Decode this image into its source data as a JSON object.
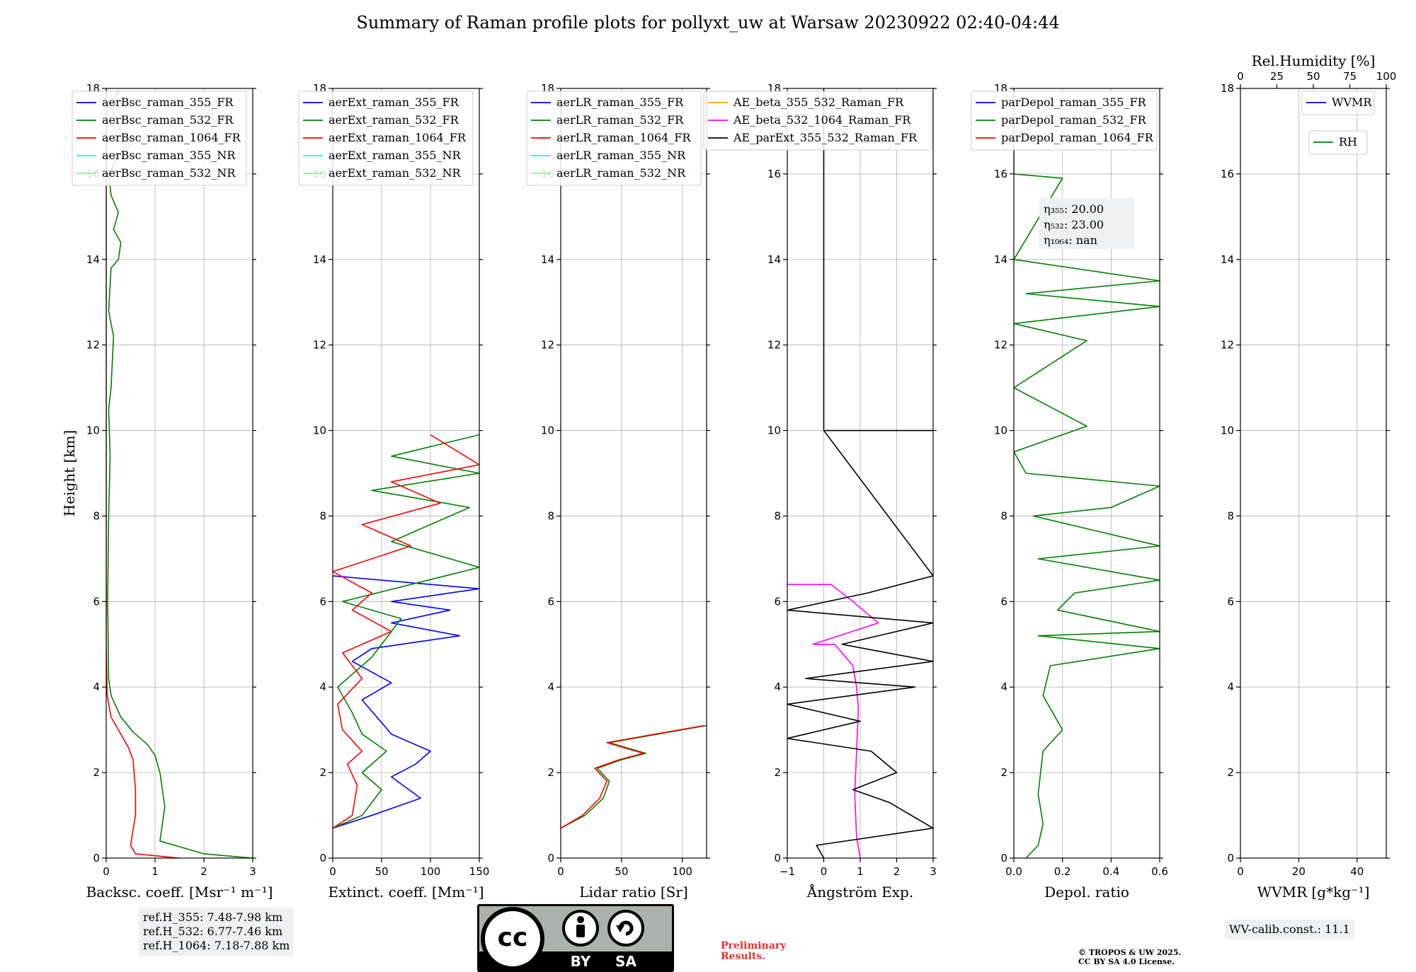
{
  "title": "Summary of Raman profile plots for pollyxt_uw at Warsaw 20230922 02:40-04:44",
  "footer": {
    "ref_heights": [
      "ref.H_355: 7.48-7.98 km",
      "ref.H_532: 6.77-7.46 km",
      "ref.H_1064: 7.18-7.88 km"
    ],
    "preliminary": [
      "Preliminary",
      "Results."
    ],
    "copyright": [
      "© TROPOS & UW 2025.",
      "CC BY SA 4.0 License."
    ],
    "wv_calib": "WV-calib.const.: 11.1",
    "license_badge": {
      "left": "cc",
      "by": "BY",
      "sa": "SA"
    }
  },
  "colors": {
    "blue": "#0000ff",
    "green": "#008000",
    "red": "#ff0000",
    "cyan": "#00ffff",
    "lightgreen": "#90ee90",
    "orange": "#ffa500",
    "magenta": "#ff00ff",
    "black": "#000000"
  },
  "chart_data": [
    {
      "id": "bsc",
      "type": "line",
      "xlabel": "Backsc. coeff. [Msr⁻¹ m⁻¹]",
      "ylabel": "Height [km]",
      "xlim": [
        0,
        3
      ],
      "ylim": [
        0,
        18
      ],
      "xticks": [
        0,
        1,
        2,
        3
      ],
      "yticks": [
        0,
        2,
        4,
        6,
        8,
        10,
        12,
        14,
        16,
        18
      ],
      "legend": [
        "aerBsc_raman_355_FR",
        "aerBsc_raman_532_FR",
        "aerBsc_raman_1064_FR",
        "aerBsc_raman_355_NR",
        "aerBsc_raman_532_NR"
      ],
      "legend_colors": [
        "blue",
        "green",
        "red",
        "cyan",
        "lightgreen"
      ],
      "series": [
        {
          "name": "aerBsc_raman_532_FR",
          "color": "green",
          "points": [
            [
              3.0,
              0.0
            ],
            [
              2.0,
              0.1
            ],
            [
              1.1,
              0.4
            ],
            [
              1.15,
              0.8
            ],
            [
              1.2,
              1.2
            ],
            [
              1.1,
              2.0
            ],
            [
              1.0,
              2.4
            ],
            [
              0.85,
              2.65
            ],
            [
              0.55,
              2.95
            ],
            [
              0.3,
              3.3
            ],
            [
              0.1,
              3.8
            ],
            [
              0.05,
              4.2
            ],
            [
              0.03,
              6.0
            ],
            [
              0.05,
              8.0
            ],
            [
              0.08,
              9.4
            ],
            [
              0.05,
              10.5
            ],
            [
              0.1,
              11.0
            ],
            [
              0.15,
              12.2
            ],
            [
              0.05,
              12.8
            ],
            [
              0.1,
              13.8
            ],
            [
              0.25,
              14.0
            ],
            [
              0.3,
              14.4
            ],
            [
              0.15,
              14.7
            ],
            [
              0.25,
              15.1
            ],
            [
              0.1,
              15.5
            ],
            [
              0.05,
              16.0
            ],
            [
              0.35,
              16.6
            ],
            [
              0.55,
              16.7
            ],
            [
              0.3,
              17.0
            ],
            [
              0.1,
              17.6
            ],
            [
              0.25,
              17.95
            ]
          ]
        },
        {
          "name": "aerBsc_raman_1064_FR",
          "color": "red",
          "points": [
            [
              1.5,
              0.0
            ],
            [
              0.6,
              0.1
            ],
            [
              0.5,
              0.3
            ],
            [
              0.6,
              1.0
            ],
            [
              0.6,
              1.6
            ],
            [
              0.55,
              2.3
            ],
            [
              0.45,
              2.6
            ],
            [
              0.3,
              2.9
            ],
            [
              0.1,
              3.3
            ],
            [
              0.02,
              3.8
            ],
            [
              0.0,
              5.0
            ],
            [
              0.0,
              18.0
            ]
          ]
        }
      ]
    },
    {
      "id": "ext",
      "type": "line",
      "xlabel": "Extinct. coeff. [Mm⁻¹]",
      "ylabel": "",
      "xlim": [
        0,
        150
      ],
      "ylim": [
        0,
        18
      ],
      "xticks": [
        0,
        50,
        100,
        150
      ],
      "yticks": [
        0,
        2,
        4,
        6,
        8,
        10,
        12,
        14,
        16,
        18
      ],
      "legend": [
        "aerExt_raman_355_FR",
        "aerExt_raman_532_FR",
        "aerExt_raman_1064_FR",
        "aerExt_raman_355_NR",
        "aerExt_raman_532_NR"
      ],
      "legend_colors": [
        "blue",
        "green",
        "red",
        "cyan",
        "lightgreen"
      ],
      "series": [
        {
          "name": "aerExt_raman_355_FR",
          "color": "blue",
          "points": [
            [
              0,
              0.7
            ],
            [
              40,
              1.0
            ],
            [
              90,
              1.4
            ],
            [
              60,
              1.9
            ],
            [
              85,
              2.2
            ],
            [
              100,
              2.5
            ],
            [
              60,
              2.9
            ],
            [
              45,
              3.3
            ],
            [
              30,
              3.7
            ],
            [
              60,
              4.1
            ],
            [
              20,
              4.6
            ],
            [
              40,
              4.9
            ],
            [
              130,
              5.2
            ],
            [
              60,
              5.5
            ],
            [
              120,
              5.8
            ],
            [
              60,
              6.0
            ],
            [
              150,
              6.3
            ],
            [
              0,
              6.6
            ]
          ]
        },
        {
          "name": "aerExt_raman_532_FR",
          "color": "green",
          "points": [
            [
              0,
              0.7
            ],
            [
              30,
              1.0
            ],
            [
              50,
              1.6
            ],
            [
              30,
              2.0
            ],
            [
              55,
              2.5
            ],
            [
              30,
              2.9
            ],
            [
              20,
              3.4
            ],
            [
              5,
              4.0
            ],
            [
              40,
              4.7
            ],
            [
              70,
              5.6
            ],
            [
              10,
              6.0
            ],
            [
              150,
              6.8
            ],
            [
              60,
              7.4
            ],
            [
              140,
              8.2
            ],
            [
              40,
              8.6
            ],
            [
              150,
              9.0
            ],
            [
              60,
              9.4
            ],
            [
              150,
              9.9
            ]
          ]
        },
        {
          "name": "aerExt_raman_1064_FR",
          "color": "red",
          "points": [
            [
              0,
              0.7
            ],
            [
              20,
              1.0
            ],
            [
              25,
              1.7
            ],
            [
              15,
              2.2
            ],
            [
              30,
              2.5
            ],
            [
              10,
              3.0
            ],
            [
              5,
              3.6
            ],
            [
              30,
              4.2
            ],
            [
              10,
              4.8
            ],
            [
              60,
              5.3
            ],
            [
              20,
              5.8
            ],
            [
              40,
              6.2
            ],
            [
              0,
              6.7
            ],
            [
              80,
              7.3
            ],
            [
              30,
              7.8
            ],
            [
              110,
              8.3
            ],
            [
              60,
              8.8
            ],
            [
              150,
              9.2
            ],
            [
              100,
              9.9
            ]
          ]
        }
      ]
    },
    {
      "id": "lr",
      "type": "line",
      "xlabel": "Lidar ratio [Sr]",
      "ylabel": "",
      "xlim": [
        0,
        120
      ],
      "ylim": [
        0,
        18
      ],
      "xticks": [
        0,
        50,
        100
      ],
      "yticks": [
        0,
        2,
        4,
        6,
        8,
        10,
        12,
        14,
        16,
        18
      ],
      "legend": [
        "aerLR_raman_355_FR",
        "aerLR_raman_532_FR",
        "aerLR_raman_1064_FR",
        "aerLR_raman_355_NR",
        "aerLR_raman_532_NR"
      ],
      "legend_colors": [
        "blue",
        "green",
        "red",
        "cyan",
        "lightgreen"
      ],
      "series": [
        {
          "name": "aerLR_raman_532_FR",
          "color": "green",
          "points": [
            [
              0,
              0.7
            ],
            [
              20,
              1.0
            ],
            [
              35,
              1.4
            ],
            [
              40,
              1.8
            ],
            [
              30,
              2.1
            ],
            [
              50,
              2.3
            ],
            [
              70,
              2.45
            ],
            [
              40,
              2.7
            ],
            [
              80,
              2.9
            ],
            [
              120,
              3.1
            ]
          ]
        },
        {
          "name": "aerLR_raman_1064_FR",
          "color": "red",
          "points": [
            [
              0,
              0.7
            ],
            [
              18,
              1.0
            ],
            [
              32,
              1.4
            ],
            [
              38,
              1.8
            ],
            [
              28,
              2.1
            ],
            [
              48,
              2.3
            ],
            [
              68,
              2.45
            ],
            [
              38,
              2.7
            ],
            [
              78,
              2.9
            ],
            [
              118,
              3.1
            ]
          ]
        }
      ]
    },
    {
      "id": "ae",
      "type": "line",
      "xlabel": "Ångström Exp.",
      "ylabel": "",
      "xlim": [
        -1,
        3
      ],
      "ylim": [
        0,
        18
      ],
      "xticks": [
        -1,
        0,
        1,
        2,
        3
      ],
      "yticks": [
        0,
        2,
        4,
        6,
        8,
        10,
        12,
        14,
        16,
        18
      ],
      "legend": [
        "AE_beta_355_532_Raman_FR",
        "AE_beta_532_1064_Raman_FR",
        "AE_parExt_355_532_Raman_FR"
      ],
      "legend_colors": [
        "orange",
        "magenta",
        "black"
      ],
      "series": [
        {
          "name": "AE_beta_532_1064_Raman_FR",
          "color": "magenta",
          "points": [
            [
              1.0,
              0.0
            ],
            [
              0.9,
              0.5
            ],
            [
              0.85,
              1.5
            ],
            [
              0.9,
              2.5
            ],
            [
              0.95,
              3.5
            ],
            [
              0.9,
              4.0
            ],
            [
              0.8,
              4.5
            ],
            [
              0.3,
              5.0
            ],
            [
              -0.3,
              5.0
            ],
            [
              1.5,
              5.5
            ],
            [
              0.8,
              6.0
            ],
            [
              0.2,
              6.4
            ],
            [
              -1.0,
              6.4
            ]
          ]
        },
        {
          "name": "AE_parExt_355_532_Raman_FR",
          "color": "black",
          "points": [
            [
              0.0,
              0.0
            ],
            [
              -0.2,
              0.3
            ],
            [
              3.0,
              0.7
            ],
            [
              1.8,
              1.3
            ],
            [
              0.8,
              1.6
            ],
            [
              2.0,
              2.0
            ],
            [
              1.3,
              2.5
            ],
            [
              -1.0,
              2.8
            ],
            [
              1.0,
              3.2
            ],
            [
              -1.0,
              3.6
            ],
            [
              2.5,
              4.0
            ],
            [
              -0.5,
              4.2
            ],
            [
              3.0,
              4.6
            ],
            [
              0.5,
              5.0
            ],
            [
              3.0,
              5.5
            ],
            [
              -1.0,
              5.8
            ],
            [
              1.2,
              6.2
            ],
            [
              3.0,
              6.6
            ],
            [
              0.0,
              10.0
            ],
            [
              3.0,
              10.0
            ],
            [
              0.0,
              10.0
            ],
            [
              0.0,
              18.0
            ]
          ]
        }
      ]
    },
    {
      "id": "dep",
      "type": "line",
      "xlabel": "Depol. ratio",
      "ylabel": "",
      "xlim": [
        0,
        0.6
      ],
      "ylim": [
        0,
        18
      ],
      "xticks": [
        0.0,
        0.2,
        0.4,
        0.6
      ],
      "yticks": [
        0,
        2,
        4,
        6,
        8,
        10,
        12,
        14,
        16,
        18
      ],
      "legend": [
        "parDepol_raman_355_FR",
        "parDepol_raman_532_FR",
        "parDepol_raman_1064_FR"
      ],
      "legend_colors": [
        "blue",
        "green",
        "red"
      ],
      "annotation": [
        "η₃₅₅: 20.00",
        "η₅₃₂: 23.00",
        "η₁₀₆₄: nan"
      ],
      "series": [
        {
          "name": "parDepol_raman_532_FR",
          "color": "green",
          "points": [
            [
              0.05,
              0.0
            ],
            [
              0.1,
              0.3
            ],
            [
              0.12,
              0.8
            ],
            [
              0.1,
              1.5
            ],
            [
              0.12,
              2.5
            ],
            [
              0.2,
              3.0
            ],
            [
              0.12,
              3.8
            ],
            [
              0.15,
              4.5
            ],
            [
              0.6,
              4.9
            ],
            [
              0.1,
              5.2
            ],
            [
              0.6,
              5.3
            ],
            [
              0.18,
              5.8
            ],
            [
              0.25,
              6.2
            ],
            [
              0.6,
              6.5
            ],
            [
              0.1,
              7.0
            ],
            [
              0.6,
              7.3
            ],
            [
              0.08,
              8.0
            ],
            [
              0.4,
              8.2
            ],
            [
              0.6,
              8.7
            ],
            [
              0.05,
              9.0
            ],
            [
              0.0,
              9.5
            ],
            [
              0.3,
              10.1
            ],
            [
              0.0,
              11.0
            ],
            [
              0.3,
              12.1
            ],
            [
              0.0,
              12.5
            ],
            [
              0.6,
              12.9
            ],
            [
              0.05,
              13.2
            ],
            [
              0.6,
              13.5
            ],
            [
              0.0,
              14.0
            ],
            [
              0.2,
              15.9
            ],
            [
              0.0,
              16.0
            ],
            [
              0.0,
              18.0
            ]
          ]
        }
      ]
    },
    {
      "id": "wv",
      "type": "line",
      "xlabel": "WVMR [g*kg⁻¹]",
      "ylabel": "",
      "xlim": [
        0,
        50
      ],
      "ylim": [
        0,
        18
      ],
      "xticks": [
        0,
        20,
        40
      ],
      "yticks": [
        0,
        2,
        4,
        6,
        8,
        10,
        12,
        14,
        16,
        18
      ],
      "top_axis": {
        "label": "Rel.Humidity [%]",
        "xlim": [
          0,
          100
        ],
        "xticks": [
          0,
          25,
          50,
          75,
          100
        ]
      },
      "legend": [
        "WVMR"
      ],
      "legend_colors": [
        "blue"
      ],
      "legend2": [
        "RH"
      ],
      "legend2_colors": [
        "green"
      ],
      "series": []
    }
  ]
}
